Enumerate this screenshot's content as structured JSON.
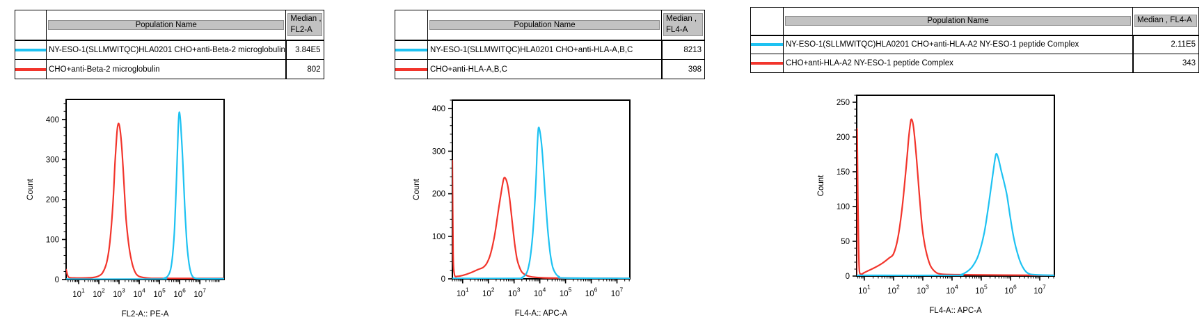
{
  "colors": {
    "cyan": "#1ec2f2",
    "red": "#f2352c",
    "header_fill": "#c2c2c2",
    "axis": "#000000"
  },
  "panels": [
    {
      "table": {
        "header": {
          "population": "Population Name",
          "median_lines": [
            "Median ,",
            "FL2-A"
          ]
        },
        "rows": [
          {
            "color": "cyan",
            "name": "NY-ESO-1(SLLMWITQC)HLA0201 CHO+anti-Beta-2 microglobulin",
            "median": "3.84E5"
          },
          {
            "color": "red",
            "name": "CHO+anti-Beta-2 microglobulin",
            "median": "802"
          }
        ]
      }
    },
    {
      "table": {
        "header": {
          "population": "Population Name",
          "median_lines": [
            "Median ,",
            "FL4-A"
          ]
        },
        "rows": [
          {
            "color": "cyan",
            "name": "NY-ESO-1(SLLMWITQC)HLA0201 CHO+anti-HLA-A,B,C",
            "median": "8213"
          },
          {
            "color": "red",
            "name": "CHO+anti-HLA-A,B,C",
            "median": "398"
          }
        ]
      }
    },
    {
      "table": {
        "header": {
          "population": "Population Name",
          "median_lines": [
            "Median , FL4-A",
            ""
          ]
        },
        "rows": [
          {
            "color": "cyan",
            "name": "NY-ESO-1(SLLMWITQC)HLA0201 CHO+anti-HLA-A2 NY-ESO-1 peptide Complex",
            "median": "2.11E5"
          },
          {
            "color": "red",
            "name": "CHO+anti-HLA-A2 NY-ESO-1 peptide Complex",
            "median": "343"
          }
        ]
      }
    }
  ],
  "chart_data": [
    {
      "type": "line",
      "title": "",
      "xlabel": "FL2-A:: PE-A",
      "ylabel": "Count",
      "xscale": "log10",
      "xlim_log10": [
        0.38,
        8.2
      ],
      "x_major_ticks_log10": [
        1,
        2,
        3,
        4,
        5,
        6,
        7
      ],
      "ylim": [
        0,
        450
      ],
      "yticks": [
        0,
        100,
        200,
        300,
        400
      ],
      "y_minor_step": 20,
      "grid": false,
      "legend_position": "none",
      "series": [
        {
          "name": "CHO+anti-Beta-2 microglobulin",
          "color_key": "red",
          "peak": {
            "log10_x": 3.0,
            "count": 390
          },
          "points": [
            [
              0.38,
              25
            ],
            [
              0.5,
              6
            ],
            [
              0.8,
              4
            ],
            [
              1.3,
              4
            ],
            [
              1.7,
              5
            ],
            [
              2.0,
              9
            ],
            [
              2.2,
              18
            ],
            [
              2.4,
              45
            ],
            [
              2.55,
              95
            ],
            [
              2.7,
              190
            ],
            [
              2.8,
              290
            ],
            [
              2.9,
              370
            ],
            [
              2.97,
              390
            ],
            [
              3.05,
              375
            ],
            [
              3.15,
              320
            ],
            [
              3.25,
              235
            ],
            [
              3.35,
              150
            ],
            [
              3.5,
              80
            ],
            [
              3.65,
              40
            ],
            [
              3.8,
              18
            ],
            [
              3.95,
              9
            ],
            [
              4.2,
              5
            ],
            [
              4.6,
              3
            ],
            [
              5.5,
              3
            ],
            [
              8.2,
              3
            ]
          ]
        },
        {
          "name": "NY-ESO-1(SLLMWITQC)HLA0201 CHO+anti-Beta-2 microglobulin",
          "color_key": "cyan",
          "peak": {
            "log10_x": 5.98,
            "count": 418
          },
          "points": [
            [
              0.38,
              1
            ],
            [
              5.0,
              1
            ],
            [
              5.2,
              3
            ],
            [
              5.4,
              8
            ],
            [
              5.55,
              25
            ],
            [
              5.65,
              60
            ],
            [
              5.75,
              130
            ],
            [
              5.85,
              260
            ],
            [
              5.93,
              380
            ],
            [
              5.98,
              418
            ],
            [
              6.05,
              390
            ],
            [
              6.15,
              300
            ],
            [
              6.25,
              185
            ],
            [
              6.35,
              95
            ],
            [
              6.45,
              45
            ],
            [
              6.55,
              18
            ],
            [
              6.65,
              7
            ],
            [
              6.8,
              3
            ],
            [
              7.1,
              2
            ],
            [
              8.2,
              2
            ]
          ]
        }
      ]
    },
    {
      "type": "line",
      "title": "",
      "xlabel": "FL4-A:: APC-A",
      "ylabel": "Count",
      "xscale": "log10",
      "xlim_log10": [
        0.6,
        7.5
      ],
      "x_major_ticks_log10": [
        1,
        2,
        3,
        4,
        5,
        6,
        7
      ],
      "ylim": [
        0,
        420
      ],
      "yticks": [
        0,
        100,
        200,
        300,
        400
      ],
      "y_minor_step": 20,
      "grid": false,
      "legend_position": "none",
      "series": [
        {
          "name": "CHO+anti-HLA-A,B,C",
          "color_key": "red",
          "peak": {
            "log10_x": 2.62,
            "count": 238
          },
          "points": [
            [
              0.6,
              278
            ],
            [
              0.63,
              60
            ],
            [
              0.68,
              10
            ],
            [
              0.8,
              6
            ],
            [
              1.0,
              8
            ],
            [
              1.3,
              14
            ],
            [
              1.6,
              22
            ],
            [
              1.8,
              27
            ],
            [
              1.95,
              38
            ],
            [
              2.1,
              62
            ],
            [
              2.25,
              105
            ],
            [
              2.4,
              165
            ],
            [
              2.55,
              222
            ],
            [
              2.62,
              238
            ],
            [
              2.72,
              228
            ],
            [
              2.82,
              192
            ],
            [
              2.92,
              138
            ],
            [
              3.02,
              84
            ],
            [
              3.12,
              45
            ],
            [
              3.28,
              18
            ],
            [
              3.45,
              9
            ],
            [
              3.65,
              5
            ],
            [
              4.0,
              3
            ],
            [
              4.6,
              2
            ],
            [
              7.5,
              1
            ]
          ]
        },
        {
          "name": "NY-ESO-1(SLLMWITQC)HLA0201 CHO+anti-HLA-A,B,C",
          "color_key": "cyan",
          "peak": {
            "log10_x": 3.95,
            "count": 355
          },
          "points": [
            [
              0.6,
              1
            ],
            [
              3.1,
              1
            ],
            [
              3.3,
              3
            ],
            [
              3.45,
              10
            ],
            [
              3.55,
              25
            ],
            [
              3.65,
              60
            ],
            [
              3.75,
              125
            ],
            [
              3.85,
              230
            ],
            [
              3.9,
              310
            ],
            [
              3.95,
              355
            ],
            [
              4.02,
              340
            ],
            [
              4.1,
              295
            ],
            [
              4.2,
              205
            ],
            [
              4.3,
              122
            ],
            [
              4.4,
              62
            ],
            [
              4.5,
              28
            ],
            [
              4.62,
              12
            ],
            [
              4.75,
              5
            ],
            [
              4.95,
              2
            ],
            [
              7.5,
              1
            ]
          ]
        }
      ]
    },
    {
      "type": "line",
      "title": "",
      "xlabel": "FL4-A:: APC-A",
      "ylabel": "Count",
      "xscale": "log10",
      "xlim_log10": [
        0.74,
        7.5
      ],
      "x_major_ticks_log10": [
        1,
        2,
        3,
        4,
        5,
        6,
        7
      ],
      "ylim": [
        0,
        260
      ],
      "yticks": [
        0,
        50,
        100,
        150,
        200,
        250
      ],
      "y_minor_step": 10,
      "grid": false,
      "legend_position": "none",
      "series": [
        {
          "name": "CHO+anti-HLA-A2 NY-ESO-1 peptide Complex",
          "color_key": "red",
          "peak": {
            "log10_x": 2.6,
            "count": 225
          },
          "points": [
            [
              0.74,
              2
            ],
            [
              0.75,
              210
            ],
            [
              0.78,
              110
            ],
            [
              0.82,
              15
            ],
            [
              0.88,
              3
            ],
            [
              1.0,
              5
            ],
            [
              1.15,
              8
            ],
            [
              1.35,
              12
            ],
            [
              1.6,
              18
            ],
            [
              1.85,
              26
            ],
            [
              2.0,
              32
            ],
            [
              2.15,
              55
            ],
            [
              2.3,
              100
            ],
            [
              2.45,
              165
            ],
            [
              2.52,
              200
            ],
            [
              2.6,
              225
            ],
            [
              2.68,
              215
            ],
            [
              2.78,
              172
            ],
            [
              2.88,
              118
            ],
            [
              2.98,
              70
            ],
            [
              3.1,
              38
            ],
            [
              3.25,
              16
            ],
            [
              3.4,
              7
            ],
            [
              3.6,
              3
            ],
            [
              4.2,
              2
            ],
            [
              7.5,
              1
            ]
          ]
        },
        {
          "name": "NY-ESO-1(SLLMWITQC)HLA0201 CHO+anti-HLA-A2 NY-ESO-1 peptide Complex",
          "color_key": "cyan",
          "peak": {
            "log10_x": 5.5,
            "count": 175
          },
          "points": [
            [
              0.74,
              1
            ],
            [
              4.1,
              1
            ],
            [
              4.3,
              2
            ],
            [
              4.5,
              6
            ],
            [
              4.7,
              14
            ],
            [
              4.9,
              30
            ],
            [
              5.1,
              62
            ],
            [
              5.25,
              102
            ],
            [
              5.4,
              148
            ],
            [
              5.5,
              175
            ],
            [
              5.58,
              170
            ],
            [
              5.68,
              152
            ],
            [
              5.78,
              135
            ],
            [
              5.88,
              116
            ],
            [
              5.98,
              88
            ],
            [
              6.08,
              62
            ],
            [
              6.18,
              42
            ],
            [
              6.32,
              22
            ],
            [
              6.46,
              10
            ],
            [
              6.6,
              4
            ],
            [
              6.8,
              2
            ],
            [
              7.5,
              1
            ]
          ]
        }
      ]
    }
  ]
}
